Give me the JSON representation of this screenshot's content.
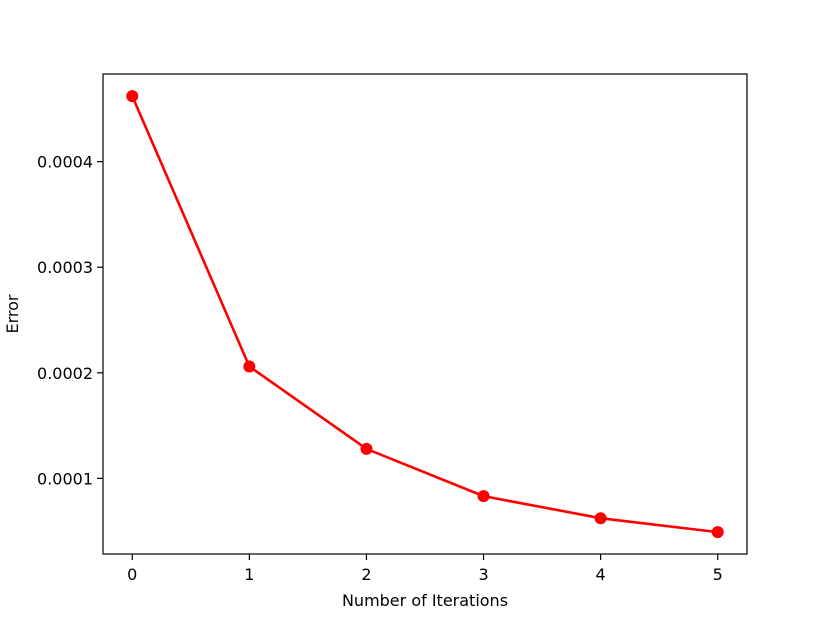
{
  "chart_data": {
    "type": "line",
    "title": "",
    "xlabel": "Number of Iterations",
    "ylabel": "Error",
    "x": [
      0,
      1,
      2,
      3,
      4,
      5
    ],
    "series": [
      {
        "values": [
          0.000462,
          0.000206,
          0.000128,
          8.32e-05,
          6.23e-05,
          4.91e-05
        ],
        "color": "#ff0000",
        "marker": "circle"
      }
    ],
    "xlim": [
      -0.25,
      5.25
    ],
    "ylim": [
      2.84e-05,
      0.000483
    ],
    "xticks": [
      0,
      1,
      2,
      3,
      4,
      5
    ],
    "xtick_labels": [
      "0",
      "1",
      "2",
      "3",
      "4",
      "5"
    ],
    "yticks": [
      0.0001,
      0.0002,
      0.0003,
      0.0004
    ],
    "ytick_labels": [
      "0.0001",
      "0.0002",
      "0.0003",
      "0.0004"
    ],
    "grid": false,
    "legend": "none"
  }
}
